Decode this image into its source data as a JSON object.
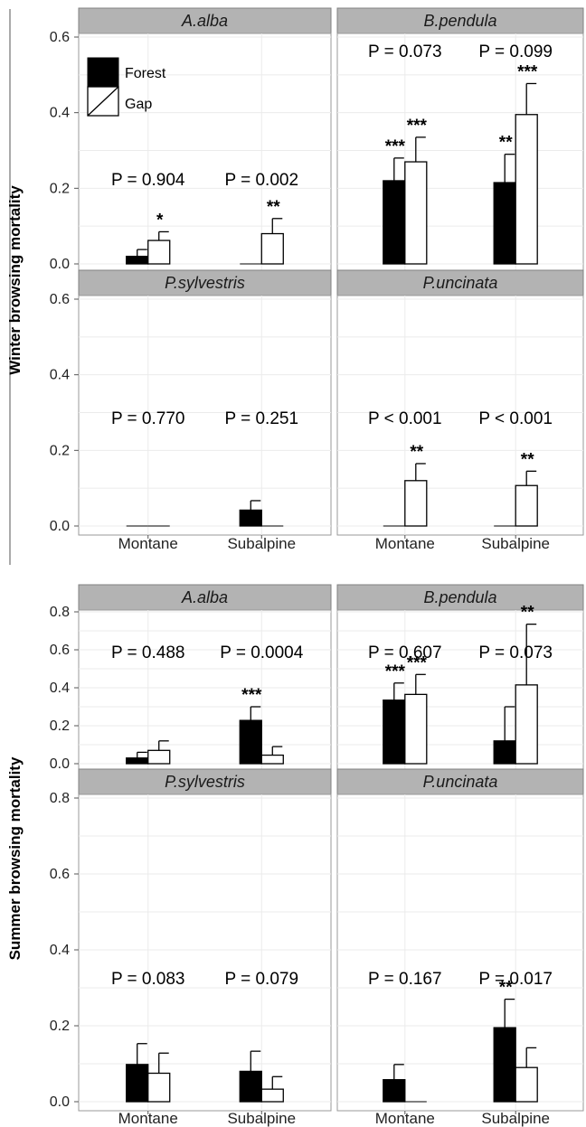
{
  "chart_data": [
    {
      "type": "bar",
      "ylabel": "Winter browsing mortality",
      "ylim": [
        0,
        0.6
      ],
      "yticks": [
        "0.0",
        "0.2",
        "0.4",
        "0.6"
      ],
      "categories": [
        "Montane",
        "Subalpine"
      ],
      "legend": {
        "placement": "top-left",
        "entries": [
          "Forest",
          "Gap"
        ]
      },
      "panels": [
        {
          "title": "A.alba",
          "p_values": [
            "P = 0.904",
            "P = 0.002"
          ],
          "series": [
            {
              "name": "Forest",
              "values": [
                0.02,
                0.0
              ],
              "err": [
                0.018,
                0.0
              ],
              "stars": [
                "",
                ""
              ]
            },
            {
              "name": "Gap",
              "values": [
                0.062,
                0.08
              ],
              "err": [
                0.023,
                0.04
              ],
              "stars": [
                "*",
                "**"
              ]
            }
          ]
        },
        {
          "title": "B.pendula",
          "p_values": [
            "P = 0.073",
            "P = 0.099"
          ],
          "series": [
            {
              "name": "Forest",
              "values": [
                0.22,
                0.215
              ],
              "err": [
                0.06,
                0.075
              ],
              "stars": [
                "***",
                "**"
              ]
            },
            {
              "name": "Gap",
              "values": [
                0.27,
                0.395
              ],
              "err": [
                0.065,
                0.082
              ],
              "stars": [
                "***",
                "***"
              ]
            }
          ]
        },
        {
          "title": "P.sylvestris",
          "p_values": [
            "P = 0.770",
            "P = 0.251"
          ],
          "series": [
            {
              "name": "Forest",
              "values": [
                0.0,
                0.042
              ],
              "err": [
                0.0,
                0.025
              ],
              "stars": [
                "",
                ""
              ]
            },
            {
              "name": "Gap",
              "values": [
                0.0,
                0.0
              ],
              "err": [
                0.0,
                0.0
              ],
              "stars": [
                "",
                ""
              ]
            }
          ]
        },
        {
          "title": "P.uncinata",
          "p_values": [
            "P < 0.001",
            "P < 0.001"
          ],
          "series": [
            {
              "name": "Forest",
              "values": [
                0.0,
                0.0
              ],
              "err": [
                0.0,
                0.0
              ],
              "stars": [
                "",
                ""
              ]
            },
            {
              "name": "Gap",
              "values": [
                0.12,
                0.107
              ],
              "err": [
                0.045,
                0.038
              ],
              "stars": [
                "**",
                "**"
              ]
            }
          ]
        }
      ]
    },
    {
      "type": "bar",
      "ylabel": "Summer browsing mortality",
      "ylim": [
        0,
        0.8
      ],
      "yticks": [
        "0.0",
        "0.2",
        "0.4",
        "0.6",
        "0.8"
      ],
      "categories": [
        "Montane",
        "Subalpine"
      ],
      "panels": [
        {
          "title": "A.alba",
          "p_values": [
            "P = 0.488",
            "P = 0.0004"
          ],
          "series": [
            {
              "name": "Forest",
              "values": [
                0.03,
                0.228
              ],
              "err": [
                0.03,
                0.072
              ],
              "stars": [
                "",
                "***"
              ]
            },
            {
              "name": "Gap",
              "values": [
                0.07,
                0.045
              ],
              "err": [
                0.05,
                0.045
              ],
              "stars": [
                "",
                ""
              ]
            }
          ]
        },
        {
          "title": "B.pendula",
          "p_values": [
            "P = 0.607",
            "P = 0.073"
          ],
          "series": [
            {
              "name": "Forest",
              "values": [
                0.335,
                0.12
              ],
              "err": [
                0.09,
                0.18
              ],
              "stars": [
                "***",
                ""
              ]
            },
            {
              "name": "Gap",
              "values": [
                0.365,
                0.415
              ],
              "err": [
                0.105,
                0.32
              ],
              "stars": [
                "***",
                "**"
              ]
            }
          ]
        },
        {
          "title": "P.sylvestris",
          "p_values": [
            "P = 0.083",
            "P = 0.079"
          ],
          "series": [
            {
              "name": "Forest",
              "values": [
                0.098,
                0.08
              ],
              "err": [
                0.055,
                0.053
              ],
              "stars": [
                "",
                ""
              ]
            },
            {
              "name": "Gap",
              "values": [
                0.075,
                0.033
              ],
              "err": [
                0.053,
                0.033
              ],
              "stars": [
                "",
                ""
              ]
            }
          ]
        },
        {
          "title": "P.uncinata",
          "p_values": [
            "P = 0.167",
            "P = 0.017"
          ],
          "series": [
            {
              "name": "Forest",
              "values": [
                0.058,
                0.195
              ],
              "err": [
                0.04,
                0.075
              ],
              "stars": [
                "",
                "**"
              ]
            },
            {
              "name": "Gap",
              "values": [
                0.0,
                0.09
              ],
              "err": [
                0.0,
                0.052
              ],
              "stars": [
                "",
                ""
              ]
            }
          ]
        }
      ]
    }
  ]
}
